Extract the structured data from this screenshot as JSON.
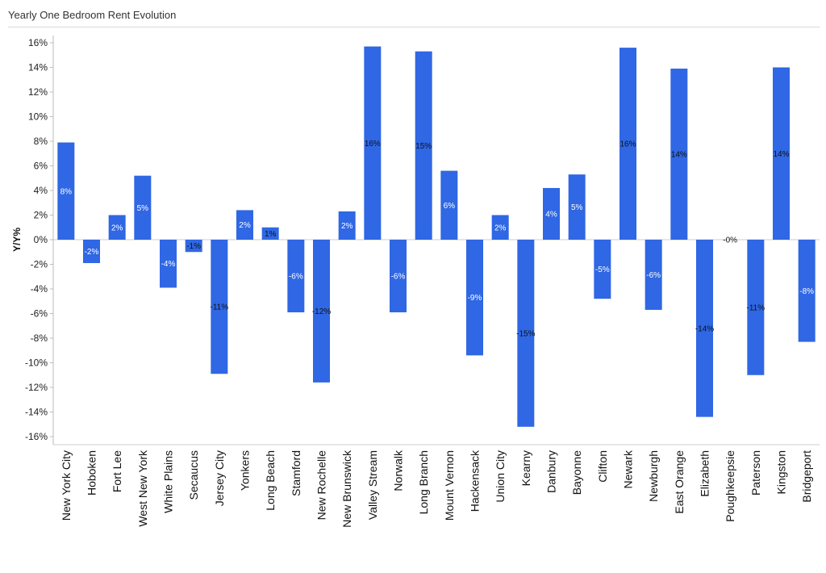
{
  "chart_data": {
    "type": "bar",
    "title": "Yearly One Bedroom Rent Evolution",
    "xlabel": "",
    "ylabel": "Y/Y%",
    "ylim": [
      -16.5,
      16.5
    ],
    "yticks": [
      16,
      14,
      12,
      10,
      8,
      6,
      4,
      2,
      0,
      -2,
      -4,
      -6,
      -8,
      -10,
      -12,
      -14,
      -16
    ],
    "ytick_labels": [
      "16%",
      "14%",
      "12%",
      "10%",
      "8%",
      "6%",
      "4%",
      "2%",
      "0%",
      "-2%",
      "-4%",
      "-6%",
      "-8%",
      "-10%",
      "-12%",
      "-14%",
      "-16%"
    ],
    "grid": false,
    "legend": "none",
    "bar_color": "#2f67e4",
    "categories": [
      "New York City",
      "Hoboken",
      "Fort Lee",
      "West New York",
      "White Plains",
      "Secaucus",
      "Jersey City",
      "Yonkers",
      "Long Beach",
      "Stamford",
      "New Rochelle",
      "New Brunswick",
      "Valley Stream",
      "Norwalk",
      "Long Branch",
      "Mount Vernon",
      "Hackensack",
      "Union City",
      "Kearny",
      "Danbury",
      "Bayonne",
      "Clifton",
      "Newark",
      "Newburgh",
      "East Orange",
      "Elizabeth",
      "Poughkeepsie",
      "Paterson",
      "Kingston",
      "Bridgeport"
    ],
    "values": [
      7.9,
      -1.9,
      2.0,
      5.2,
      -3.9,
      -1.0,
      -10.9,
      2.4,
      1.0,
      -5.9,
      -11.6,
      2.3,
      15.7,
      -5.9,
      15.3,
      5.6,
      -9.4,
      2.0,
      -15.2,
      4.2,
      5.3,
      -4.8,
      15.6,
      -5.7,
      13.9,
      -14.4,
      0.0,
      -11.0,
      14.0,
      -8.3
    ],
    "data_labels": [
      "8%",
      "-2%",
      "2%",
      "5%",
      "-4%",
      "-1%",
      "-11%",
      "2%",
      "1%",
      "-6%",
      "-12%",
      "2%",
      "16%",
      "-6%",
      "15%",
      "6%",
      "-9%",
      "2%",
      "-15%",
      "4%",
      "5%",
      "-5%",
      "16%",
      "-6%",
      "14%",
      "-14%",
      "-0%",
      "-11%",
      "14%",
      "-8%"
    ]
  }
}
